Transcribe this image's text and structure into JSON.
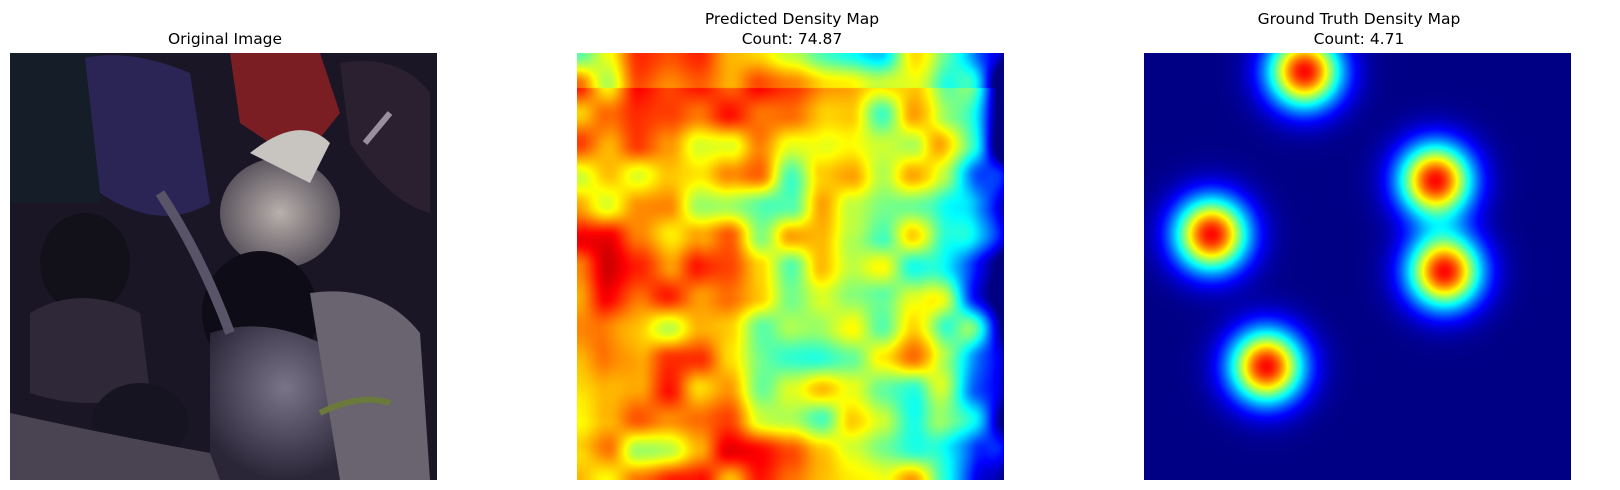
{
  "panels": [
    {
      "title": "Original Image"
    },
    {
      "title": "Predicted Density Map",
      "count_label": "Count: 74.87"
    },
    {
      "title": "Ground Truth Density Map",
      "count_label": "Count: 4.71"
    }
  ],
  "colors": {
    "background": "#ffffff",
    "jet_low": "#00008f",
    "jet_high": "#800000"
  }
}
